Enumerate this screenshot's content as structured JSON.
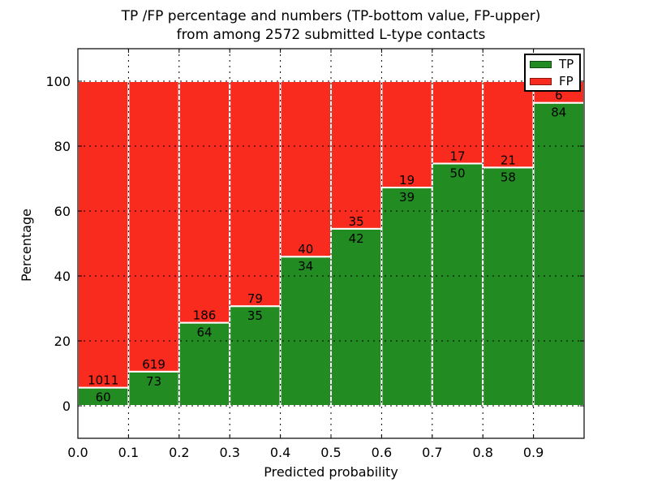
{
  "title": {
    "line1": "TP /FP percentage and numbers (TP-bottom value, FP-upper)",
    "line2": "from among 2572 submitted L-type contacts"
  },
  "axes": {
    "xlabel": "Predicted probability",
    "ylabel": "Percentage",
    "xtick_labels": [
      "0.0",
      "0.1",
      "0.2",
      "0.3",
      "0.4",
      "0.5",
      "0.6",
      "0.7",
      "0.8",
      "0.9"
    ],
    "ytick_labels": [
      "0",
      "20",
      "40",
      "60",
      "80",
      "100"
    ]
  },
  "legend": {
    "items": [
      {
        "label": "TP",
        "color": "#228b22"
      },
      {
        "label": "FP",
        "color": "#f92b1e"
      }
    ]
  },
  "chart_data": {
    "type": "bar",
    "stacked": true,
    "normalized_to_percent": true,
    "title": "TP /FP percentage and numbers (TP-bottom value, FP-upper) from among 2572 submitted L-type contacts",
    "xlabel": "Predicted probability",
    "ylabel": "Percentage",
    "x_bins": [
      0.0,
      0.1,
      0.2,
      0.3,
      0.4,
      0.5,
      0.6,
      0.7,
      0.8,
      0.9
    ],
    "bin_width": 0.1,
    "series": [
      {
        "name": "TP",
        "color": "#228b22",
        "counts": [
          60,
          73,
          64,
          35,
          34,
          42,
          39,
          50,
          58,
          84
        ]
      },
      {
        "name": "FP",
        "color": "#f92b1e",
        "counts": [
          1011,
          619,
          186,
          79,
          40,
          35,
          19,
          17,
          21,
          6
        ]
      }
    ],
    "tp_percent": [
      5.6,
      10.55,
      25.6,
      30.7,
      45.95,
      54.55,
      67.24,
      74.63,
      73.42,
      93.33
    ],
    "total_contacts": 2572,
    "xlim": [
      0,
      1
    ],
    "ylim": [
      -10,
      110
    ],
    "xticks": [
      0.0,
      0.1,
      0.2,
      0.3,
      0.4,
      0.5,
      0.6,
      0.7,
      0.8,
      0.9
    ],
    "yticks": [
      0,
      20,
      40,
      60,
      80,
      100
    ],
    "grid": "dotted both axes, drawn over bars",
    "bar_edge_color": "#ffffff",
    "legend_position": "upper right"
  }
}
